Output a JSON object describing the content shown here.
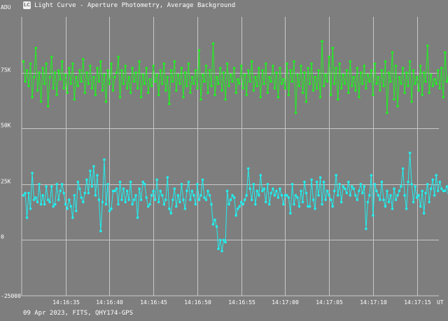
{
  "window": {
    "title": "Light Curve - Aperture Photometry, Average Background",
    "icon": "light-curve-app-icon",
    "icon_glyph": "LC"
  },
  "footer": {
    "caption": "09 Apr 2023, FITS, QHY174-GPS"
  },
  "colors": {
    "background": "#7e7e7e",
    "grid": "#c8c8c8",
    "text": "#ffffff",
    "series1": "#22ee22",
    "series2": "#22eeee"
  },
  "chart_data": {
    "type": "line",
    "ylabel": "ADU",
    "xlabel": "UT",
    "ylim": [
      -25000,
      100000
    ],
    "yticks": [
      {
        "value": -25000,
        "label": "-25000"
      },
      {
        "value": 0,
        "label": "0"
      },
      {
        "value": 25000,
        "label": "25K"
      },
      {
        "value": 50000,
        "label": "50K"
      },
      {
        "value": 75000,
        "label": "75K"
      }
    ],
    "xlim_seconds_after_14_16_30": [
      0,
      47.5
    ],
    "xticks": [
      {
        "seconds": 5,
        "label": "14:16:35"
      },
      {
        "seconds": 10,
        "label": "14:16:40"
      },
      {
        "seconds": 15,
        "label": "14:16:45"
      },
      {
        "seconds": 20,
        "label": "14:16:50"
      },
      {
        "seconds": 25,
        "label": "14:16:55"
      },
      {
        "seconds": 30,
        "label": "14:17:00"
      },
      {
        "seconds": 35,
        "label": "14:17:05"
      },
      {
        "seconds": 40,
        "label": "14:17:10"
      },
      {
        "seconds": 45,
        "label": "14:17:15"
      }
    ],
    "grid": true,
    "x_start_seconds": 0.2,
    "x_step_seconds": 0.2,
    "series": [
      {
        "color": "#22ee22",
        "values": [
          80000,
          71000,
          76000,
          69000,
          79000,
          64000,
          73000,
          86000,
          67000,
          75000,
          62000,
          77000,
          70000,
          79000,
          60000,
          73000,
          82000,
          68000,
          75000,
          65000,
          76000,
          72000,
          80000,
          68000,
          74000,
          66000,
          77000,
          70000,
          79000,
          63000,
          73000,
          69000,
          76000,
          71000,
          81000,
          66000,
          75000,
          70000,
          78000,
          68000,
          73000,
          65000,
          77000,
          71000,
          80000,
          67000,
          74000,
          62000,
          76000,
          70000,
          79000,
          67000,
          73000,
          75000,
          82000,
          64000,
          76000,
          70000,
          78000,
          68000,
          73000,
          66000,
          77000,
          71000,
          75000,
          68000,
          80000,
          64000,
          74000,
          70000,
          77000,
          66000,
          72000,
          69000,
          78000,
          71000,
          74000,
          65000,
          76000,
          70000,
          79000,
          67000,
          73000,
          61000,
          76000,
          71000,
          80000,
          67000,
          74000,
          70000,
          77000,
          64000,
          75000,
          69000,
          79000,
          66000,
          73000,
          70000,
          76000,
          68000,
          85000,
          63000,
          74000,
          71000,
          78000,
          66000,
          76000,
          69000,
          88000,
          65000,
          73000,
          70000,
          77000,
          67000,
          75000,
          63000,
          79000,
          69000,
          74000,
          71000,
          77000,
          66000,
          72000,
          70000,
          78000,
          68000,
          74000,
          65000,
          76000,
          71000,
          80000,
          67000,
          73000,
          69000,
          77000,
          64000,
          76000,
          70000,
          79000,
          66000,
          73000,
          71000,
          78000,
          68000,
          75000,
          64000,
          77000,
          70000,
          72000,
          68000,
          79000,
          65000,
          76000,
          71000,
          80000,
          57000,
          74000,
          69000,
          78000,
          66000,
          75000,
          62000,
          77000,
          70000,
          79000,
          67000,
          73000,
          68000,
          76000,
          64000,
          89000,
          69000,
          74000,
          71000,
          82000,
          65000,
          86000,
          70000,
          77000,
          63000,
          79000,
          68000,
          74000,
          70000,
          76000,
          66000,
          80000,
          69000,
          73000,
          67000,
          77000,
          64000,
          75000,
          70000,
          78000,
          68000,
          74000,
          71000,
          76000,
          65000,
          79000,
          70000,
          73000,
          67000,
          76000,
          69000,
          80000,
          57000,
          75000,
          71000,
          84000,
          63000,
          78000,
          60000,
          73000,
          70000,
          77000,
          66000,
          75000,
          69000,
          80000,
          62000,
          76000,
          70000,
          73000,
          67000,
          78000,
          65000,
          75000,
          71000,
          87000,
          66000,
          74000,
          69000,
          72000,
          70000,
          76000,
          68000,
          77000,
          64000,
          84000,
          71000,
          73000
        ]
      },
      {
        "color": "#22eeee",
        "values": [
          20000,
          21000,
          10000,
          21000,
          14000,
          30000,
          18000,
          19000,
          17000,
          25000,
          16000,
          20000,
          16000,
          24000,
          18000,
          17000,
          24000,
          15000,
          16000,
          25000,
          18000,
          22000,
          25000,
          21000,
          16000,
          14000,
          18000,
          15000,
          10000,
          20000,
          13000,
          26000,
          23000,
          19000,
          17000,
          21000,
          27000,
          21000,
          31000,
          24000,
          33000,
          20000,
          29000,
          18000,
          4000,
          17000,
          36000,
          16000,
          25000,
          13000,
          14000,
          22000,
          22000,
          23000,
          16000,
          26000,
          18000,
          23000,
          17000,
          22000,
          18000,
          26000,
          16000,
          18000,
          20000,
          10000,
          23000,
          18000,
          26000,
          25000,
          19000,
          15000,
          16000,
          20000,
          22000,
          18000,
          27000,
          17000,
          22000,
          20000,
          16000,
          18000,
          28000,
          14000,
          12000,
          18000,
          23000,
          15000,
          20000,
          17000,
          25000,
          18000,
          14000,
          22000,
          26000,
          18000,
          22000,
          20000,
          16000,
          25000,
          18000,
          20000,
          27000,
          19000,
          18000,
          22000,
          20000,
          16000,
          7000,
          9000,
          6000,
          -4000,
          0,
          -5000,
          0,
          -1000,
          22000,
          16000,
          18000,
          20000,
          19000,
          11000,
          14000,
          15000,
          17000,
          16000,
          18000,
          20000,
          32000,
          23000,
          18000,
          25000,
          16000,
          22000,
          20000,
          29000,
          22000,
          23000,
          17000,
          25000,
          16000,
          21000,
          23000,
          20000,
          22000,
          19000,
          23000,
          20000,
          16000,
          20000,
          20000,
          19000,
          12000,
          25000,
          16000,
          20000,
          19000,
          15000,
          22000,
          17000,
          26000,
          21000,
          15000,
          15000,
          27000,
          18000,
          14000,
          26000,
          20000,
          28000,
          16000,
          26000,
          18000,
          22000,
          20000,
          18000,
          15000,
          22000,
          29000,
          20000,
          25000,
          17000,
          24000,
          23000,
          21000,
          26000,
          20000,
          24000,
          23000,
          20000,
          18000,
          22000,
          25000,
          21000,
          24000,
          5000,
          17000,
          20000,
          29000,
          11000,
          25000,
          22000,
          20000,
          18000,
          26000,
          18000,
          15000,
          22000,
          17000,
          20000,
          14000,
          23000,
          18000,
          20000,
          22000,
          24000,
          32000,
          20000,
          14000,
          26000,
          39000,
          25000,
          17000,
          24000,
          19000,
          20000,
          15000,
          22000,
          12000,
          21000,
          25000,
          17000,
          23000,
          27000,
          20000,
          29000,
          22000,
          26000,
          23000,
          22000,
          22000,
          24000,
          21000,
          30000
        ]
      }
    ]
  }
}
